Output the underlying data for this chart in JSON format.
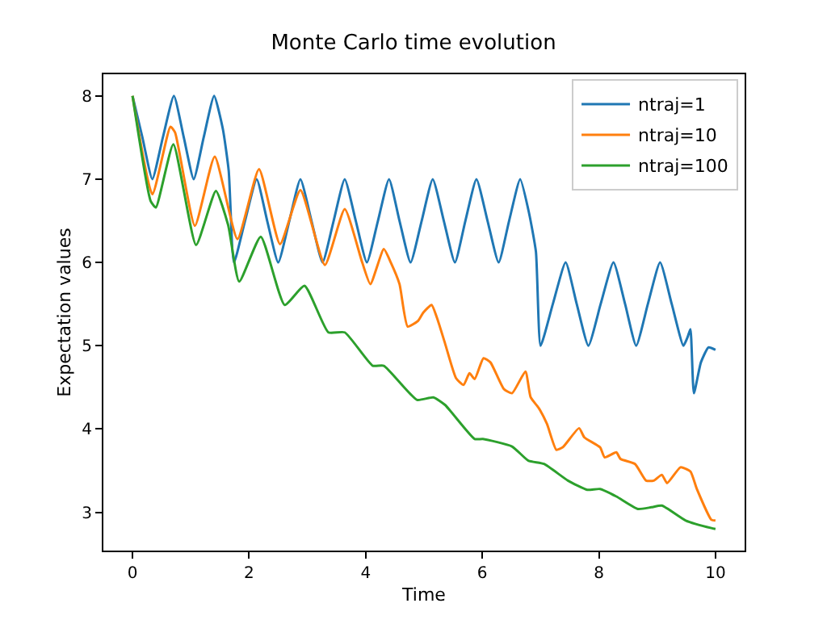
{
  "chart_data": {
    "type": "line",
    "title": "Monte Carlo time evolution",
    "xlabel": "Time",
    "ylabel": "Expectation values",
    "xlim": [
      -0.5,
      10.5
    ],
    "xticks": [
      0,
      2,
      4,
      6,
      8,
      10
    ],
    "ylim": [
      2.54,
      8.26
    ],
    "yticks": [
      3,
      4,
      5,
      6,
      7,
      8
    ],
    "grid": false,
    "legend": "top right",
    "marker": "none",
    "line_style": "solid",
    "series": [
      {
        "name": "ntraj=1",
        "color": "#1f77b4",
        "x": [
          0,
          0.17,
          0.34,
          0.52,
          0.71,
          0.88,
          1.05,
          1.22,
          1.4,
          1.55,
          1.65,
          1.74,
          1.93,
          2.13,
          2.31,
          2.5,
          2.69,
          2.88,
          3.07,
          3.26,
          3.45,
          3.64,
          3.83,
          4.02,
          4.21,
          4.4,
          4.58,
          4.77,
          4.96,
          5.15,
          5.34,
          5.53,
          5.71,
          5.9,
          6.09,
          6.28,
          6.46,
          6.65,
          6.8,
          6.92,
          7.0,
          7.21,
          7.43,
          7.62,
          7.82,
          8.03,
          8.25,
          8.45,
          8.64,
          8.84,
          9.05,
          9.25,
          9.45,
          9.52,
          9.57,
          9.63,
          9.75,
          9.88,
          10
        ],
        "values": [
          8,
          7.5,
          7.0,
          7.5,
          8,
          7.5,
          7.0,
          7.5,
          8,
          7.6,
          7.1,
          6.0,
          6.5,
          7,
          6.5,
          6,
          6.5,
          7,
          6.5,
          6,
          6.5,
          7,
          6.5,
          6,
          6.5,
          7,
          6.5,
          6,
          6.5,
          7,
          6.5,
          6,
          6.5,
          7,
          6.5,
          6,
          6.5,
          7,
          6.6,
          6.13,
          5.0,
          5.5,
          6,
          5.5,
          5,
          5.5,
          6,
          5.5,
          5,
          5.5,
          6,
          5.5,
          5.0,
          5.1,
          5.2,
          4.43,
          4.8,
          4.98,
          4.95
        ]
      },
      {
        "name": "ntraj=10",
        "color": "#ff7f0e",
        "x": [
          0,
          0.34,
          0.65,
          0.73,
          1.07,
          1.41,
          1.8,
          2.17,
          2.53,
          2.88,
          3.3,
          3.64,
          3.94,
          4.08,
          4.31,
          4.43,
          4.58,
          4.72,
          4.9,
          4.99,
          5.13,
          5.23,
          5.36,
          5.55,
          5.68,
          5.78,
          5.87,
          6.02,
          6.14,
          6.37,
          6.51,
          6.74,
          6.83,
          6.97,
          7.11,
          7.27,
          7.38,
          7.66,
          7.75,
          8.02,
          8.1,
          8.3,
          8.37,
          8.62,
          8.81,
          8.94,
          9.08,
          9.17,
          9.4,
          9.57,
          9.68,
          9.93,
          10
        ],
        "values": [
          8.0,
          6.82,
          7.63,
          7.56,
          6.44,
          7.27,
          6.28,
          7.12,
          6.22,
          6.87,
          5.97,
          6.64,
          6.0,
          5.74,
          6.16,
          6.0,
          5.74,
          5.23,
          5.3,
          5.4,
          5.49,
          5.32,
          5.03,
          4.61,
          4.53,
          4.67,
          4.6,
          4.85,
          4.8,
          4.48,
          4.43,
          4.69,
          4.38,
          4.25,
          4.06,
          3.75,
          3.78,
          4.01,
          3.9,
          3.78,
          3.66,
          3.72,
          3.64,
          3.58,
          3.38,
          3.38,
          3.45,
          3.35,
          3.54,
          3.49,
          3.28,
          2.91,
          2.9
        ]
      },
      {
        "name": "ntraj=100",
        "color": "#2ca02c",
        "x": [
          0,
          0.31,
          0.4,
          0.7,
          1.09,
          1.43,
          1.64,
          1.83,
          2.2,
          2.61,
          2.95,
          3.36,
          3.64,
          4.12,
          4.31,
          4.88,
          5.16,
          5.36,
          5.87,
          6.01,
          6.51,
          6.79,
          7.06,
          7.47,
          7.8,
          8.02,
          8.3,
          8.67,
          8.9,
          9.08,
          9.49,
          9.93,
          10
        ],
        "values": [
          8.0,
          6.74,
          6.66,
          7.42,
          6.21,
          6.86,
          6.45,
          5.77,
          6.31,
          5.49,
          5.72,
          5.16,
          5.16,
          4.76,
          4.76,
          4.35,
          4.38,
          4.29,
          3.88,
          3.88,
          3.79,
          3.62,
          3.58,
          3.38,
          3.27,
          3.28,
          3.19,
          3.04,
          3.06,
          3.08,
          2.9,
          2.81,
          2.8
        ]
      }
    ]
  }
}
